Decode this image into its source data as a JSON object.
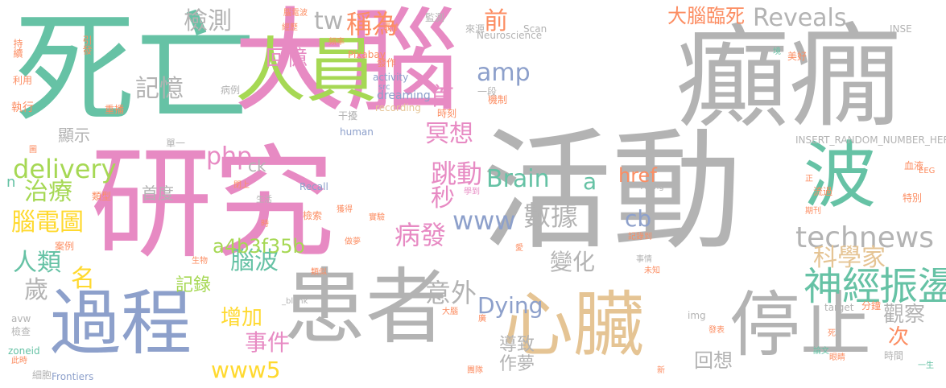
{
  "palette": {
    "green": "#66c2a5",
    "orange": "#fc8d62",
    "blue": "#8da0cb",
    "pink": "#e78ac3",
    "lime": "#a6d854",
    "yellow": "#ffd92f",
    "tan": "#e5c494",
    "gray": "#b3b3b3"
  },
  "words": [
    {
      "text": "死亡",
      "color": "green"
    },
    {
      "text": "大腦",
      "color": "pink"
    },
    {
      "text": "癲癇",
      "color": "gray"
    },
    {
      "text": "活動",
      "color": "gray"
    },
    {
      "text": "研究",
      "color": "pink"
    },
    {
      "text": "患者",
      "color": "gray"
    },
    {
      "text": "過程",
      "color": "blue"
    },
    {
      "text": "心臟",
      "color": "tan"
    },
    {
      "text": "停止",
      "color": "gray"
    },
    {
      "text": "人員",
      "color": "lime"
    },
    {
      "text": "波",
      "color": "green"
    },
    {
      "text": "神經",
      "color": "green"
    },
    {
      "text": "振盪",
      "color": "green"
    },
    {
      "text": "technews",
      "color": "gray"
    },
    {
      "text": "Reveals",
      "color": "gray"
    },
    {
      "text": "科學家",
      "color": "tan"
    },
    {
      "text": "大腦臨死",
      "color": "orange"
    },
    {
      "text": "數據",
      "color": "gray"
    },
    {
      "text": "變化",
      "color": "gray"
    },
    {
      "text": "意外",
      "color": "gray"
    },
    {
      "text": "病發",
      "color": "pink"
    },
    {
      "text": "秒",
      "color": "pink"
    },
    {
      "text": "跳動",
      "color": "pink"
    },
    {
      "text": "冥想",
      "color": "pink"
    },
    {
      "text": "首",
      "color": "pink"
    },
    {
      "text": "前",
      "color": "orange"
    },
    {
      "text": "稱為",
      "color": "orange"
    },
    {
      "text": "tw",
      "color": "gray"
    },
    {
      "text": "檢測",
      "color": "gray"
    },
    {
      "text": "回憶",
      "color": "pink"
    },
    {
      "text": "記憶",
      "color": "gray"
    },
    {
      "text": "amp",
      "color": "blue"
    },
    {
      "text": "Brain",
      "color": "green"
    },
    {
      "text": "www",
      "color": "blue"
    },
    {
      "text": "php",
      "color": "pink"
    },
    {
      "text": "delivery",
      "color": "lime"
    },
    {
      "text": "治療",
      "color": "lime"
    },
    {
      "text": "腦電圖",
      "color": "yellow"
    },
    {
      "text": "人類",
      "color": "green"
    },
    {
      "text": "歲",
      "color": "gray"
    },
    {
      "text": "名",
      "color": "yellow"
    },
    {
      "text": "腦波",
      "color": "green"
    },
    {
      "text": "首度",
      "color": "gray"
    },
    {
      "text": "a4b3f35b",
      "color": "lime"
    },
    {
      "text": "記錄",
      "color": "lime"
    },
    {
      "text": "增加",
      "color": "yellow"
    },
    {
      "text": "事件",
      "color": "pink"
    },
    {
      "text": "www5",
      "color": "yellow"
    },
    {
      "text": "Dying",
      "color": "blue"
    },
    {
      "text": "導致",
      "color": "gray"
    },
    {
      "text": "作夢",
      "color": "gray"
    },
    {
      "text": "回想",
      "color": "gray"
    },
    {
      "text": "觀察",
      "color": "gray"
    },
    {
      "text": "次",
      "color": "orange"
    },
    {
      "text": "href",
      "color": "orange"
    },
    {
      "text": "cb",
      "color": "blue"
    },
    {
      "text": "a",
      "color": "green"
    },
    {
      "text": "ck",
      "color": "gray"
    },
    {
      "text": "顯示",
      "color": "gray"
    },
    {
      "text": "n",
      "color": "green"
    },
    {
      "text": "執行",
      "color": "orange"
    },
    {
      "text": "持續",
      "color": "orange"
    },
    {
      "text": "利用",
      "color": "orange"
    },
    {
      "text": "引發",
      "color": "orange"
    },
    {
      "text": "重播",
      "color": "orange"
    },
    {
      "text": "腦電波",
      "color": "orange"
    },
    {
      "text": "經歷",
      "color": "orange"
    },
    {
      "text": "頻率",
      "color": "orange"
    },
    {
      "text": "Pixabay",
      "color": "orange"
    },
    {
      "text": "寄付",
      "color": "orange"
    },
    {
      "text": "發作",
      "color": "orange"
    },
    {
      "text": "activity",
      "color": "blue"
    },
    {
      "text": "src",
      "color": "blue"
    },
    {
      "text": "dreaming",
      "color": "blue"
    },
    {
      "text": "recording",
      "color": "tan"
    },
    {
      "text": "Neuroscience",
      "color": "gray"
    },
    {
      "text": "Scan",
      "color": "gray"
    },
    {
      "text": "來源",
      "color": "gray"
    },
    {
      "text": "監測",
      "color": "gray"
    },
    {
      "text": "一段",
      "color": "gray"
    },
    {
      "text": "機制",
      "color": "orange"
    },
    {
      "text": "時刻",
      "color": "orange"
    },
    {
      "text": "干擾",
      "color": "gray"
    },
    {
      "text": "病例",
      "color": "gray"
    },
    {
      "text": "human",
      "color": "blue"
    },
    {
      "text": "單一",
      "color": "gray"
    },
    {
      "text": "INSERT_RANDOM_NUMBER_HERE",
      "color": "gray"
    },
    {
      "text": "INSE",
      "color": "gray"
    },
    {
      "text": "美好",
      "color": "orange"
    },
    {
      "text": "境",
      "color": "green"
    },
    {
      "text": "血液",
      "color": "orange"
    },
    {
      "text": "EEG",
      "color": "orange"
    },
    {
      "text": "正",
      "color": "orange"
    },
    {
      "text": "流過",
      "color": "orange"
    },
    {
      "text": "特別",
      "color": "orange"
    },
    {
      "text": "期刊",
      "color": "orange"
    },
    {
      "text": "Aging",
      "color": "gray"
    },
    {
      "text": "Recall",
      "color": "blue"
    },
    {
      "text": "閉上",
      "color": "orange"
    },
    {
      "text": "生活",
      "color": "gray"
    },
    {
      "text": "類型",
      "color": "orange"
    },
    {
      "text": "案例",
      "color": "orange"
    },
    {
      "text": "生物",
      "color": "orange"
    },
    {
      "text": "檢索",
      "color": "orange"
    },
    {
      "text": "時",
      "color": "orange"
    },
    {
      "text": "類似",
      "color": "orange"
    },
    {
      "text": "做夢",
      "color": "orange"
    },
    {
      "text": "實驗",
      "color": "orange"
    },
    {
      "text": "學到",
      "color": "pink"
    },
    {
      "text": "獲得",
      "color": "orange"
    },
    {
      "text": "記錄到",
      "color": "orange"
    },
    {
      "text": "愛",
      "color": "orange"
    },
    {
      "text": "事情",
      "color": "gray"
    },
    {
      "text": "未知",
      "color": "orange"
    },
    {
      "text": "分鐘",
      "color": "orange"
    },
    {
      "text": "target",
      "color": "gray"
    },
    {
      "text": "img",
      "color": "gray"
    },
    {
      "text": "_blank",
      "color": "gray"
    },
    {
      "text": "大腦",
      "color": "orange"
    },
    {
      "text": "廣",
      "color": "orange"
    },
    {
      "text": "發表",
      "color": "orange"
    },
    {
      "text": "死",
      "color": "orange"
    },
    {
      "text": "論文",
      "color": "green"
    },
    {
      "text": "眼睛",
      "color": "orange"
    },
    {
      "text": "時間",
      "color": "gray"
    },
    {
      "text": "一生",
      "color": "green"
    },
    {
      "text": "新",
      "color": "orange"
    },
    {
      "text": "團隊",
      "color": "orange"
    },
    {
      "text": "Frontiers",
      "color": "blue"
    },
    {
      "text": "細胞",
      "color": "gray"
    },
    {
      "text": "此時",
      "color": "orange"
    },
    {
      "text": "zoneid",
      "color": "green"
    },
    {
      "text": "檢查",
      "color": "gray"
    },
    {
      "text": "avw",
      "color": "gray"
    },
    {
      "text": "圖",
      "color": "orange"
    }
  ]
}
